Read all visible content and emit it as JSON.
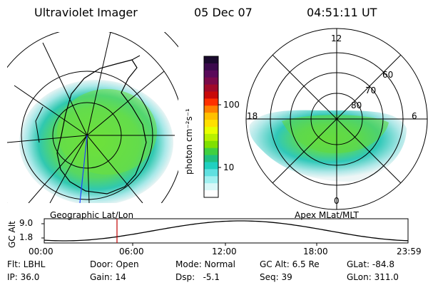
{
  "header": {
    "instrument": "Ultraviolet Imager",
    "date": "05 Dec 07",
    "time": "04:51:11 UT"
  },
  "colorbar": {
    "unit_label": "photon cm⁻²s⁻¹",
    "ticks": [
      "100",
      "10"
    ],
    "colors_top_to_bottom": [
      "#1a0a2e",
      "#3b0a4d",
      "#5a0a5a",
      "#7a0a4a",
      "#a00a2a",
      "#c80a0a",
      "#ff3000",
      "#ff8000",
      "#ffc000",
      "#ffe000",
      "#e8ff00",
      "#b8f000",
      "#80e000",
      "#40d040",
      "#20c080",
      "#20d0c0",
      "#60e0e0",
      "#a0f0f0",
      "#d8f8f8",
      "#ffffff"
    ]
  },
  "left_map": {
    "caption": "Geographic Lat/Lon"
  },
  "right_map": {
    "caption": "Apex MLat/MLT",
    "mlt_labels": {
      "top": "12",
      "left": "18",
      "right": "6",
      "bottom": "0"
    },
    "lat_labels": [
      "60",
      "70",
      "80"
    ]
  },
  "orbit_plot": {
    "ylabel": "GC Alt",
    "yticks": [
      "9.0",
      "1.8"
    ],
    "xticks": [
      "00:00",
      "06:00",
      "12:00",
      "18:00",
      "23:59"
    ],
    "current_time_marker": "04:51"
  },
  "status": {
    "flt": "Flt: LBHL",
    "ip": "IP: 36.0",
    "door": "Door: Open",
    "gain": "Gain: 14",
    "mode": "Mode: Normal",
    "dsp": "Dsp:   -5.1",
    "gc_alt": "GC Alt: 6.5 Re",
    "seq": "Seq: 39",
    "glat": "GLat: -84.8",
    "glon": "GLon: 311.0"
  }
}
